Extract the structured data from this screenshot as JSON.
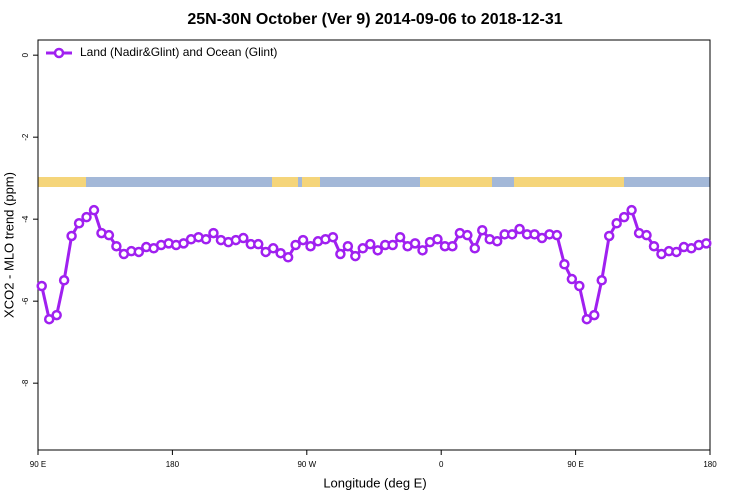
{
  "chart_data": {
    "type": "line",
    "title": "25N-30N October (Ver 9)   2014-09-06 to 2018-12-31",
    "xlabel": "Longitude (deg E)",
    "ylabel": "XCO2 - MLO trend (ppm)",
    "xlim": [
      90,
      540
    ],
    "ylim": [
      -9.63,
      0.37
    ],
    "xticks": [
      {
        "value": 90,
        "label": "90 E"
      },
      {
        "value": 180,
        "label": "180"
      },
      {
        "value": 270,
        "label": "90 W"
      },
      {
        "value": 360,
        "label": "0"
      },
      {
        "value": 450,
        "label": "90 E"
      },
      {
        "value": 540,
        "label": "180"
      }
    ],
    "yticks": [
      0,
      -2,
      -4,
      -6,
      -8
    ],
    "legend": "top-left",
    "x": [
      92.5,
      97.5,
      102.5,
      107.5,
      112.5,
      117.5,
      122.5,
      127.5,
      132.5,
      137.5,
      142.5,
      147.5,
      152.5,
      157.5,
      162.5,
      167.5,
      172.5,
      177.5,
      182.5,
      187.5,
      192.5,
      197.5,
      202.5,
      207.5,
      212.5,
      217.5,
      222.5,
      227.5,
      232.5,
      237.5,
      242.5,
      247.5,
      252.5,
      257.5,
      262.5,
      267.5,
      272.5,
      277.5,
      282.5,
      287.5,
      292.5,
      297.5,
      302.5,
      307.5,
      312.5,
      317.5,
      322.5,
      327.5,
      332.5,
      337.5,
      342.5,
      347.5,
      352.5,
      357.5,
      362.5,
      367.5,
      372.5,
      377.5,
      382.5,
      387.5,
      392.5,
      397.5,
      402.5,
      407.5,
      412.5,
      417.5,
      422.5,
      427.5,
      432.5,
      437.5,
      442.5,
      447.5,
      452.5,
      457.5,
      462.5,
      467.5,
      472.5,
      477.5,
      482.5,
      487.5,
      492.5,
      497.5,
      502.5,
      507.5,
      512.5,
      517.5,
      522.5,
      527.5,
      532.5,
      537.5
    ],
    "series": [
      {
        "name": "Land (Nadir&Glint) and Ocean (Glint)",
        "color": "#a020f0",
        "values": [
          -5.63,
          -6.44,
          -6.34,
          -5.49,
          -4.41,
          -4.1,
          -3.95,
          -3.78,
          -4.34,
          -4.39,
          -4.66,
          -4.85,
          -4.78,
          -4.8,
          -4.68,
          -4.71,
          -4.63,
          -4.59,
          -4.63,
          -4.59,
          -4.49,
          -4.44,
          -4.49,
          -4.34,
          -4.51,
          -4.56,
          -4.51,
          -4.46,
          -4.61,
          -4.61,
          -4.8,
          -4.71,
          -4.83,
          -4.93,
          -4.63,
          -4.51,
          -4.66,
          -4.54,
          -4.49,
          -4.44,
          -4.85,
          -4.66,
          -4.9,
          -4.71,
          -4.61,
          -4.76,
          -4.63,
          -4.63,
          -4.44,
          -4.66,
          -4.59,
          -4.76,
          -4.56,
          -4.49,
          -4.66,
          -4.66,
          -4.34,
          -4.39,
          -4.71,
          -4.27,
          -4.49,
          -4.54,
          -4.37,
          -4.37,
          -4.24,
          -4.37,
          -4.37,
          -4.46,
          -4.37,
          -4.39,
          -5.1,
          -5.46,
          -5.63,
          -6.44,
          -6.34,
          -5.49,
          -4.41,
          -4.1,
          -3.95,
          -3.78,
          -4.34,
          -4.39,
          -4.66,
          -4.85,
          -4.78,
          -4.8,
          -4.68,
          -4.71,
          -4.63,
          -4.59
        ]
      }
    ]
  }
}
